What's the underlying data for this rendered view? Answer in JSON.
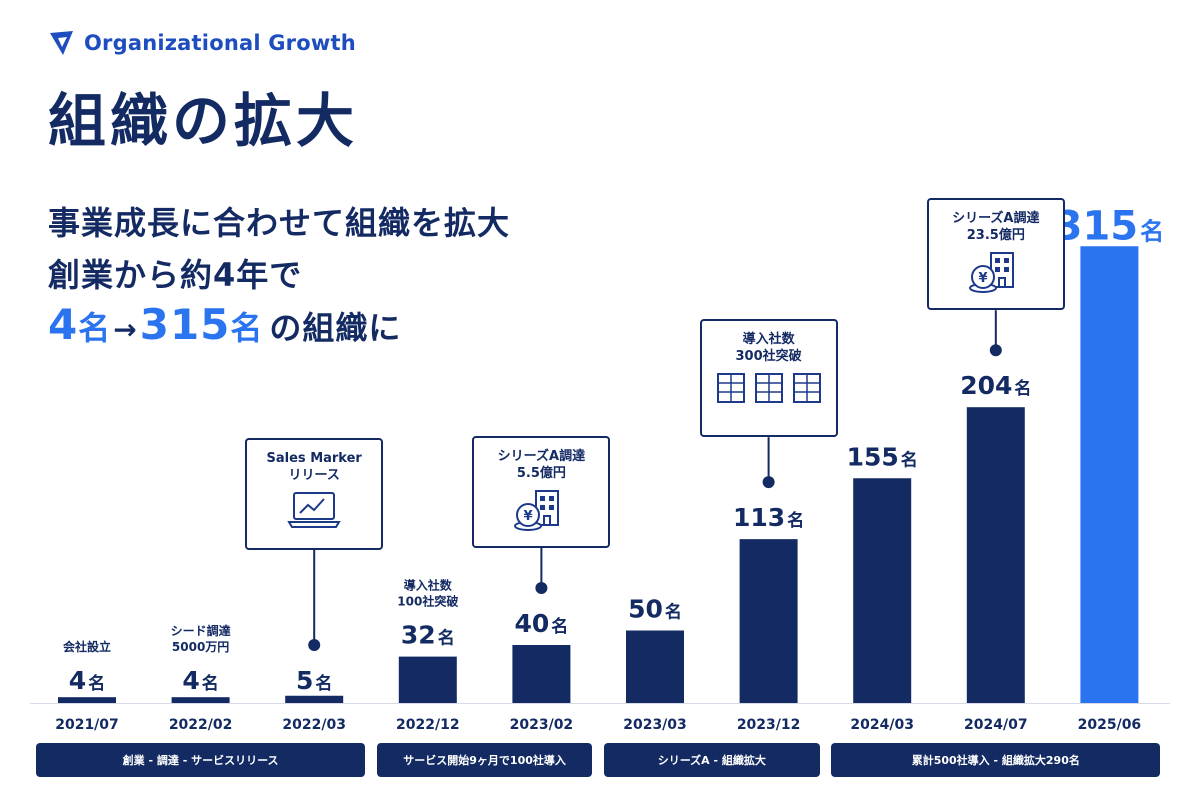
{
  "brand": {
    "name": "Organizational Growth"
  },
  "title": "組織の拡大",
  "subtitle": {
    "line1": "事業成長に合わせて組織を拡大",
    "line2": "創業から約4年で",
    "from_num": "4",
    "unit": "名",
    "arrow": "→",
    "to_num": "315",
    "tail": "の組織に"
  },
  "colors": {
    "navy": "#132a63",
    "accent": "#2b74ef",
    "brand_blue": "#1d4dbf"
  },
  "chart_data": {
    "type": "bar",
    "unit": "名",
    "categories": [
      "2021/07",
      "2022/02",
      "2022/03",
      "2022/12",
      "2023/02",
      "2023/03",
      "2023/12",
      "2024/03",
      "2024/07",
      "2025/06"
    ],
    "values": [
      4,
      4,
      5,
      32,
      40,
      50,
      113,
      155,
      204,
      315
    ],
    "highlight_index": 9,
    "annotations": [
      {
        "index": 0,
        "text": "会社設立"
      },
      {
        "index": 1,
        "text": "シード調達\n5000万円"
      },
      {
        "index": 3,
        "text": "導入社数\n100社突破"
      }
    ],
    "callouts": [
      {
        "index": 2,
        "text": "Sales Marker\nリリース",
        "icon": "laptop-chart-icon"
      },
      {
        "index": 4,
        "text": "シリーズA調達\n5.5億円",
        "icon": "yen-building-icon"
      },
      {
        "index": 6,
        "text": "導入社数\n300社突破",
        "icon": "three-buildings-icon"
      },
      {
        "index": 8,
        "text": "シリーズA調達\n23.5億円",
        "icon": "yen-building-icon"
      }
    ],
    "phases": [
      {
        "label": "創業 - 調達 - サービスリリース",
        "from": 0,
        "to": 2
      },
      {
        "label": "サービス開始9ヶ月で100社導入",
        "from": 3,
        "to": 4
      },
      {
        "label": "シリーズA - 組織拡大",
        "from": 5,
        "to": 6
      },
      {
        "label": "累計500社導入 - 組織拡大290名",
        "from": 7,
        "to": 9
      }
    ]
  }
}
